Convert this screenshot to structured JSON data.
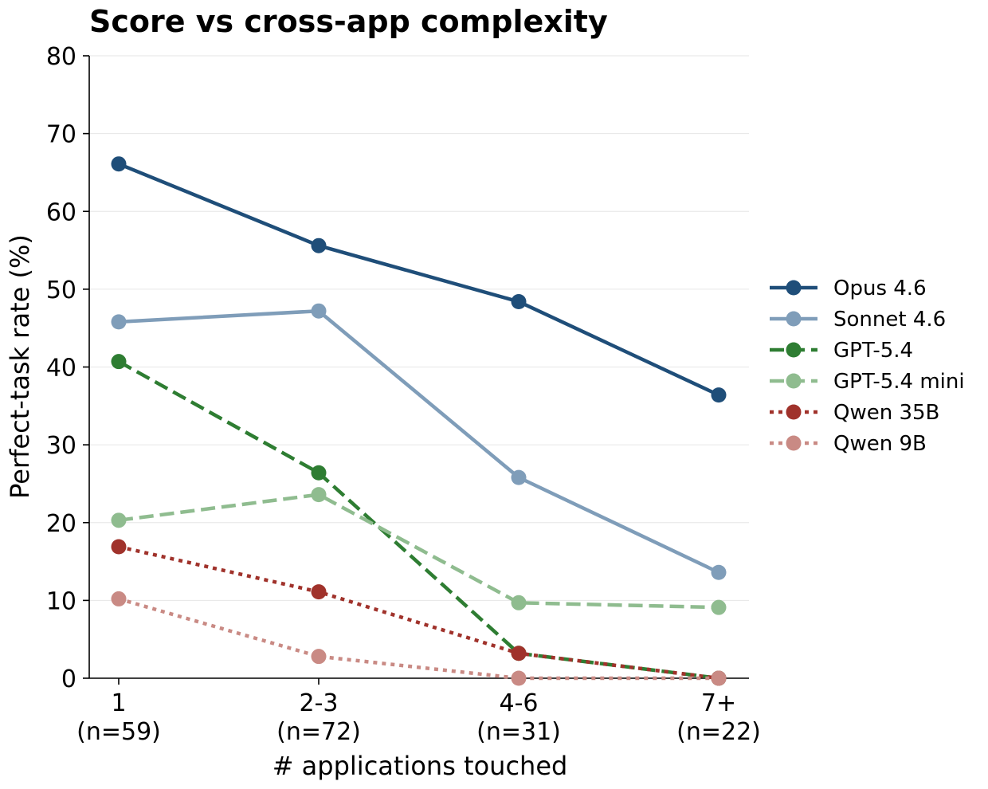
{
  "chart_data": {
    "type": "line",
    "title": "Score vs cross-app complexity",
    "xlabel": "# applications touched",
    "ylabel": "Perfect-task rate (%)",
    "ylim": [
      0,
      80
    ],
    "yticks": [
      0,
      10,
      20,
      30,
      40,
      50,
      60,
      70,
      80
    ],
    "categories": [
      "1",
      "2-3",
      "4-6",
      "7+"
    ],
    "category_counts": [
      "(n=59)",
      "(n=72)",
      "(n=31)",
      "(n=22)"
    ],
    "grid": "horizontal",
    "legend_position": "right",
    "series": [
      {
        "name": "Opus 4.6",
        "values": [
          66.1,
          55.6,
          48.4,
          36.4
        ],
        "color": "#1f4e79",
        "dash": "solid"
      },
      {
        "name": "Sonnet 4.6",
        "values": [
          45.8,
          47.2,
          25.8,
          13.6
        ],
        "color": "#7f9db9",
        "dash": "solid"
      },
      {
        "name": "GPT-5.4",
        "values": [
          40.7,
          26.4,
          3.2,
          0.0
        ],
        "color": "#2e7d32",
        "dash": "dashed"
      },
      {
        "name": "GPT-5.4 mini",
        "values": [
          20.3,
          23.6,
          9.7,
          9.1
        ],
        "color": "#8fbc8f",
        "dash": "dashed"
      },
      {
        "name": "Qwen 35B",
        "values": [
          16.9,
          11.1,
          3.2,
          0.0
        ],
        "color": "#a0322b",
        "dash": "dotted"
      },
      {
        "name": "Qwen 9B",
        "values": [
          10.2,
          2.8,
          0.0,
          0.0
        ],
        "color": "#c98a84",
        "dash": "dotted"
      }
    ]
  }
}
